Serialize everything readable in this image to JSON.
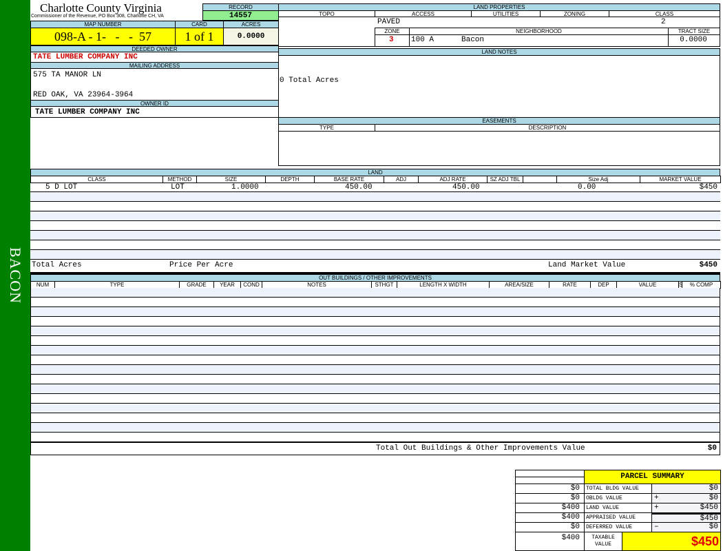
{
  "sidebar": {
    "label": "BACON"
  },
  "header": {
    "title": "Charlotte County Virginia",
    "subtitle": "Commissioner of the Revenue, PO Box 308, Charlotte CH, VA"
  },
  "record": {
    "label": "RECORD",
    "value": "14557"
  },
  "map": {
    "label": "MAP NUMBER",
    "value": "098-A - 1-   -   -  57",
    "card_label": "CARD",
    "card": "1 of 1",
    "acres_label": "ACRES",
    "acres": "0.0000"
  },
  "owner": {
    "deeded_label": "DEEDED OWNER",
    "deeded": "TATE LUMBER COMPANY INC",
    "mailing_label": "MAILING ADDRESS",
    "address1": "575 TA MANOR LN",
    "address2": "RED OAK, VA 23964-3964",
    "id_label": "OWNER ID",
    "id": "TATE LUMBER COMPANY INC"
  },
  "land_props": {
    "label": "LAND PROPERTIES",
    "cols": [
      "TOPO",
      "ACCESS",
      "UTILITIES",
      "ZONING",
      "CLASS"
    ],
    "access": "PAVED",
    "class": "2",
    "zone_label": "ZONE",
    "neigh_label": "NEIGHBORHOOD",
    "tract_label": "TRACT SIZE",
    "zone": "3",
    "neighborhood_code": "100 A",
    "neighborhood": "Bacon",
    "tract": "0.0000"
  },
  "land_notes": {
    "label": "LAND NOTES",
    "text": "0 Total Acres"
  },
  "easements": {
    "label": "EASEMENTS",
    "cols": [
      "TYPE",
      "DESCRIPTION"
    ]
  },
  "land": {
    "label": "LAND",
    "cols": [
      "CLASS",
      "METHOD",
      "SIZE",
      "DEPTH",
      "BASE RATE",
      "ADJ",
      "ADJ RATE",
      "SZ ADJ TBL",
      "",
      "Size Adj",
      "MARKET VALUE"
    ],
    "row": {
      "class": "5 D LOT",
      "method": "LOT",
      "size": "1.0000",
      "base_rate": "450.00",
      "adj_rate": "450.00",
      "size_adj": "0.00",
      "market": "$450"
    },
    "total_acres": "Total Acres",
    "price_per_acre": "Price Per Acre",
    "market_label": "Land Market Value",
    "market_total": "$450"
  },
  "outbuildings": {
    "label": "OUT BUILDINGS / OTHER IMPROVEMENTS",
    "cols": [
      "NUM",
      "TYPE",
      "GRADE",
      "YEAR",
      "COND",
      "NOTES",
      "STHGT",
      "LENGTH X WIDTH",
      "AREA/SIZE",
      "RATE",
      "DEP",
      "VALUE",
      "S",
      "% COMP"
    ],
    "total_label": "Total Out Buildings & Other Improvements Value",
    "total": "$0"
  },
  "summary": {
    "title": "PARCEL SUMMARY",
    "rows": [
      {
        "prev": "$0",
        "label": "TOTAL BLDG VALUE",
        "op": "",
        "value": "$0"
      },
      {
        "prev": "$0",
        "label": "OBLDG VALUE",
        "op": "+",
        "value": "$0"
      },
      {
        "prev": "$400",
        "label": "LAND VALUE",
        "op": "+",
        "value": "$450"
      },
      {
        "prev": "$400",
        "label": "APPRAISED VALUE",
        "op": "",
        "value": "$450"
      },
      {
        "prev": "$0",
        "label": "DEFERRED VALUE",
        "op": "–",
        "value": "$0"
      }
    ],
    "taxable_prev": "$400",
    "taxable_label": "TAXABLE VALUE",
    "taxable": "$450"
  },
  "colors": {
    "sidebar": "#008000",
    "header": "#add8e6",
    "highlight": "#ffff00",
    "record": "#90ee90",
    "red": "#cc0000"
  }
}
